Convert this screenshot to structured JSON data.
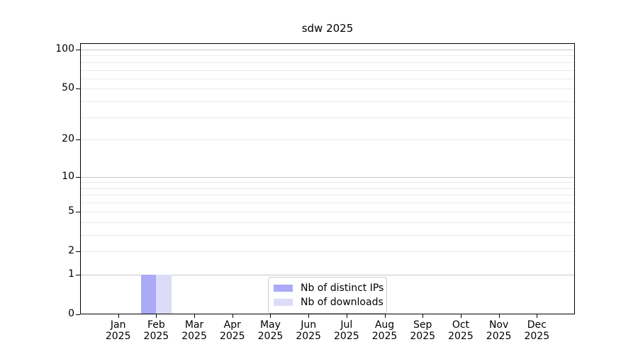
{
  "chart_data": {
    "type": "bar",
    "title": "sdw 2025",
    "x_categories": [
      "Jan",
      "Feb",
      "Mar",
      "Apr",
      "May",
      "Jun",
      "Jul",
      "Aug",
      "Sep",
      "Oct",
      "Nov",
      "Dec"
    ],
    "x_year": "2025",
    "series": [
      {
        "name": "Nb of distinct IPs",
        "color": "#aaaaf6",
        "values": [
          0,
          1,
          0,
          0,
          0,
          0,
          0,
          0,
          0,
          0,
          0,
          0
        ]
      },
      {
        "name": "Nb of downloads",
        "color": "#dcdcf9",
        "values": [
          0,
          1,
          0,
          0,
          0,
          0,
          0,
          0,
          0,
          0,
          0,
          0
        ]
      }
    ],
    "yscale": "log1p",
    "ylim": [
      0,
      112
    ],
    "yticks": [
      0,
      1,
      2,
      5,
      10,
      20,
      50,
      100
    ],
    "grid_major": [
      1,
      10,
      100
    ],
    "grid_minor": [
      2,
      3,
      4,
      5,
      6,
      7,
      8,
      9,
      20,
      30,
      40,
      50,
      60,
      70,
      80,
      90
    ],
    "legend_position": "lower-center",
    "colors": {
      "grid_major": "#c8c8c8",
      "grid_minor": "#eaeaea",
      "axis": "#000000",
      "text": "#000000",
      "background": "#ffffff"
    }
  }
}
